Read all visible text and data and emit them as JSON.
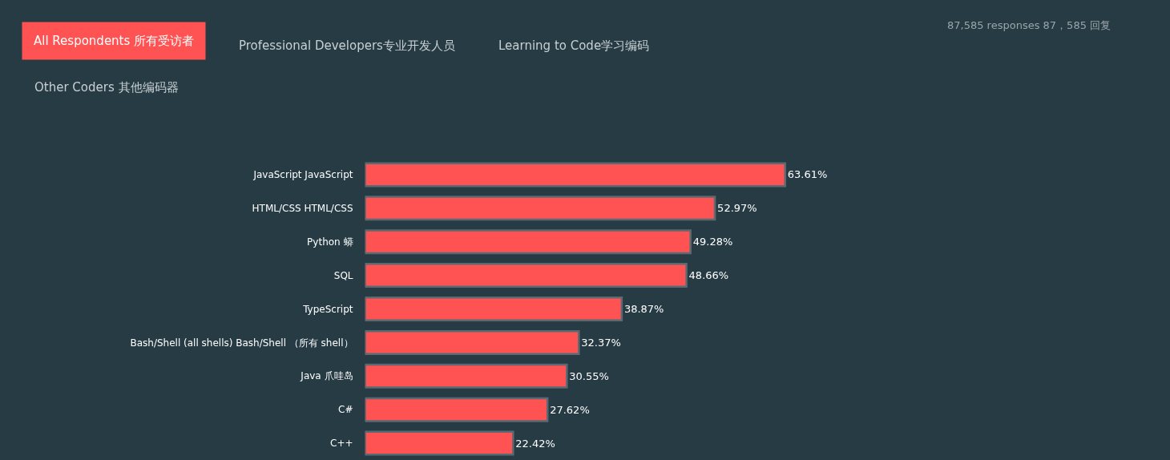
{
  "chart_data": {
    "type": "bar",
    "orientation": "horizontal",
    "categories": [
      "JavaScript JavaScript",
      "HTML/CSS HTML/CSS",
      "Python 蟒",
      "SQL",
      "TypeScript",
      "Bash/Shell (all shells) Bash/Shell （所有 shell）",
      "Java 爪哇岛",
      "C#",
      "C++"
    ],
    "values": [
      63.61,
      52.97,
      49.28,
      48.66,
      38.87,
      32.37,
      30.55,
      27.62,
      22.42
    ],
    "value_labels": [
      "63.61%",
      "52.97%",
      "49.28%",
      "48.66%",
      "38.87%",
      "32.37%",
      "30.55%",
      "27.62%",
      "22.42%"
    ],
    "color": "#ff5252",
    "tick_labels": "y",
    "annotations": [
      "All Respondents 所有受访者",
      "Professional Developers专业开发人员",
      "Learning to Code学习编码",
      "Other Coders 其他编码器",
      "87,585 responses 87，585 回复"
    ]
  }
}
